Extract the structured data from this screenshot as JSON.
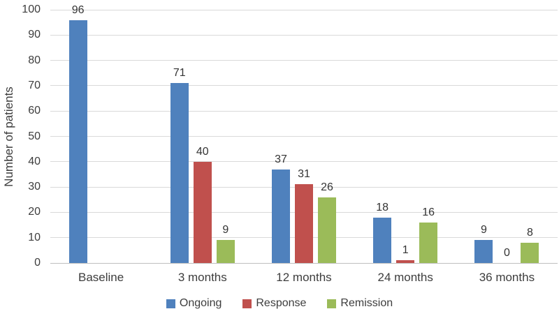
{
  "chart_data": {
    "type": "bar",
    "title": "",
    "xlabel": "",
    "ylabel": "Number of patients",
    "categories": [
      "Baseline",
      "3 months",
      "12 months",
      "24 months",
      "36 months"
    ],
    "series": [
      {
        "name": "Ongoing",
        "color": "#4F81BD",
        "values": [
          96,
          71,
          37,
          18,
          9
        ]
      },
      {
        "name": "Response",
        "color": "#C0504D",
        "values": [
          null,
          40,
          31,
          1,
          0
        ]
      },
      {
        "name": "Remission",
        "color": "#9BBB59",
        "values": [
          null,
          9,
          26,
          16,
          8
        ]
      }
    ],
    "ylim": [
      0,
      100
    ],
    "yticks": [
      0,
      10,
      20,
      30,
      40,
      50,
      60,
      70,
      80,
      90,
      100
    ],
    "grid": true,
    "legend_position": "bottom",
    "data_labels": true
  },
  "colors": {
    "gridline": "#d9d9d9",
    "axis_line": "#bfbfbf",
    "text": "#3d3d3d"
  }
}
